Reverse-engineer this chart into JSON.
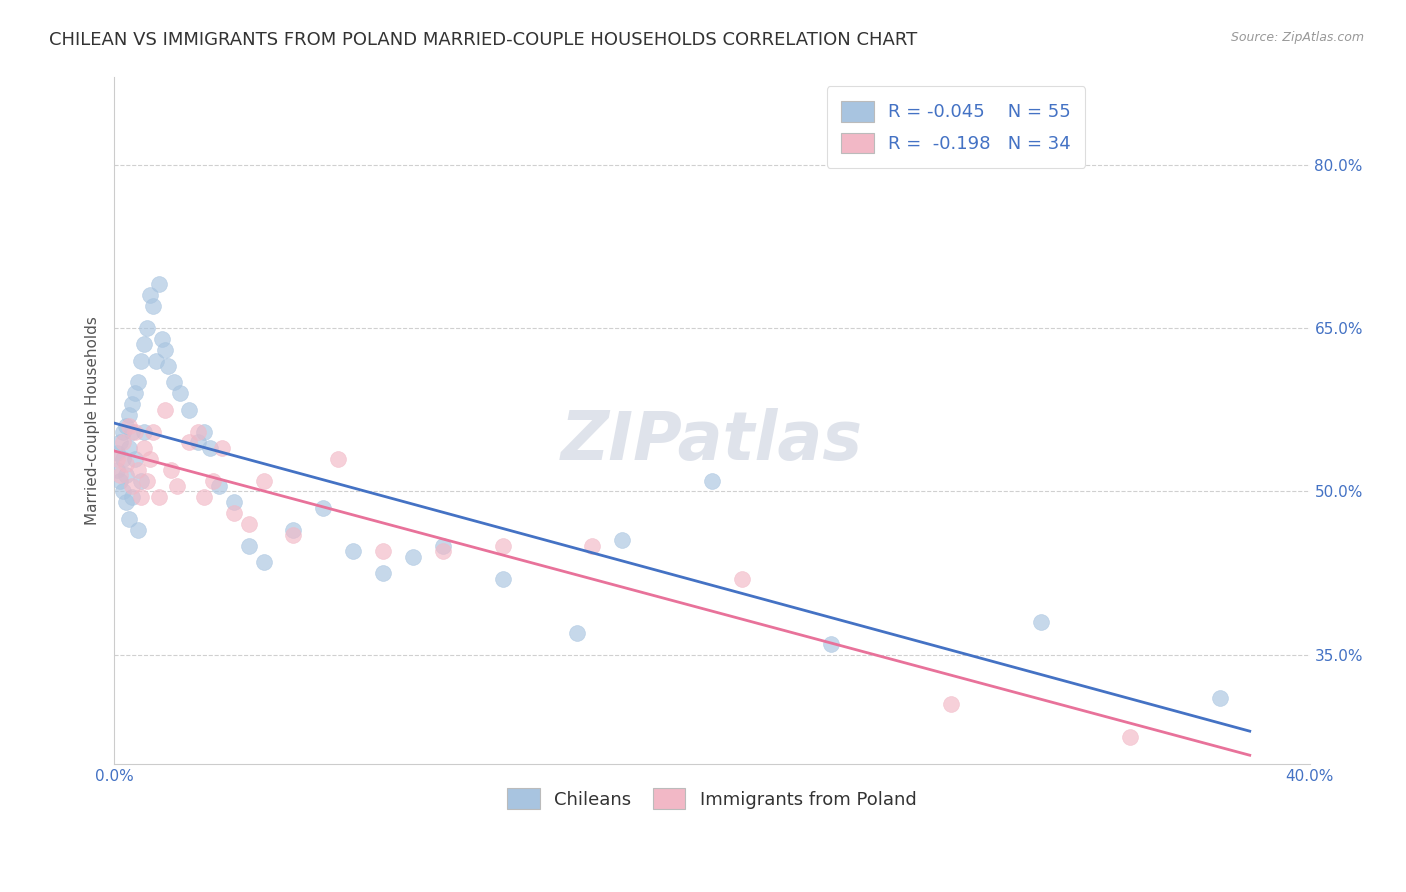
{
  "title": "CHILEAN VS IMMIGRANTS FROM POLAND MARRIED-COUPLE HOUSEHOLDS CORRELATION CHART",
  "source": "Source: ZipAtlas.com",
  "ylabel": "Married-couple Households",
  "xlim": [
    0.0,
    0.4
  ],
  "ylim": [
    0.25,
    0.88
  ],
  "xticks": [
    0.0,
    0.05,
    0.1,
    0.15,
    0.2,
    0.25,
    0.3,
    0.35,
    0.4
  ],
  "xticklabels": [
    "0.0%",
    "",
    "",
    "",
    "",
    "",
    "",
    "",
    "40.0%"
  ],
  "ytick_positions": [
    0.35,
    0.5,
    0.65,
    0.8
  ],
  "ytick_labels": [
    "35.0%",
    "50.0%",
    "65.0%",
    "80.0%"
  ],
  "background_color": "#ffffff",
  "grid_color": "#d0d0d0",
  "chilean_color": "#a8c4e0",
  "poland_color": "#f2b8c6",
  "chilean_line_color": "#4472c4",
  "poland_line_color": "#e8729a",
  "text_color": "#4472c4",
  "chilean_label": "Chileans",
  "poland_label": "Immigrants from Poland",
  "watermark": "ZIPatlas",
  "chilean_x": [
    0.001,
    0.001,
    0.002,
    0.002,
    0.003,
    0.003,
    0.003,
    0.004,
    0.004,
    0.004,
    0.005,
    0.005,
    0.005,
    0.006,
    0.006,
    0.006,
    0.007,
    0.007,
    0.008,
    0.008,
    0.009,
    0.009,
    0.01,
    0.01,
    0.011,
    0.012,
    0.013,
    0.014,
    0.015,
    0.016,
    0.017,
    0.018,
    0.02,
    0.022,
    0.025,
    0.028,
    0.03,
    0.032,
    0.035,
    0.04,
    0.045,
    0.05,
    0.06,
    0.07,
    0.08,
    0.09,
    0.1,
    0.11,
    0.13,
    0.155,
    0.17,
    0.2,
    0.24,
    0.31,
    0.37
  ],
  "chilean_y": [
    0.535,
    0.52,
    0.545,
    0.51,
    0.555,
    0.53,
    0.5,
    0.56,
    0.515,
    0.49,
    0.57,
    0.54,
    0.475,
    0.58,
    0.555,
    0.495,
    0.59,
    0.53,
    0.6,
    0.465,
    0.62,
    0.51,
    0.635,
    0.555,
    0.65,
    0.68,
    0.67,
    0.62,
    0.69,
    0.64,
    0.63,
    0.615,
    0.6,
    0.59,
    0.575,
    0.545,
    0.555,
    0.54,
    0.505,
    0.49,
    0.45,
    0.435,
    0.465,
    0.485,
    0.445,
    0.425,
    0.44,
    0.45,
    0.42,
    0.37,
    0.455,
    0.51,
    0.36,
    0.38,
    0.31
  ],
  "poland_x": [
    0.001,
    0.002,
    0.003,
    0.004,
    0.005,
    0.006,
    0.007,
    0.008,
    0.009,
    0.01,
    0.011,
    0.012,
    0.013,
    0.015,
    0.017,
    0.019,
    0.021,
    0.025,
    0.028,
    0.03,
    0.033,
    0.036,
    0.04,
    0.045,
    0.05,
    0.06,
    0.075,
    0.09,
    0.11,
    0.13,
    0.16,
    0.21,
    0.28,
    0.34
  ],
  "poland_y": [
    0.53,
    0.515,
    0.545,
    0.525,
    0.56,
    0.505,
    0.555,
    0.52,
    0.495,
    0.54,
    0.51,
    0.53,
    0.555,
    0.495,
    0.575,
    0.52,
    0.505,
    0.545,
    0.555,
    0.495,
    0.51,
    0.54,
    0.48,
    0.47,
    0.51,
    0.46,
    0.53,
    0.445,
    0.445,
    0.45,
    0.45,
    0.42,
    0.305,
    0.275
  ],
  "marker_size": 130,
  "marker_alpha": 0.65,
  "title_fontsize": 13,
  "label_fontsize": 11,
  "tick_fontsize": 11,
  "legend_fontsize": 13
}
